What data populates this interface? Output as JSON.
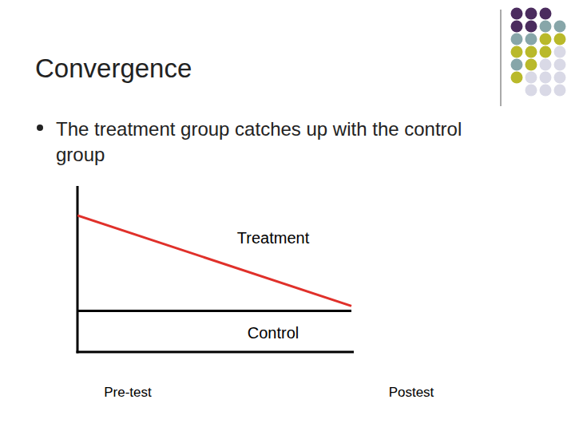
{
  "chart_data": {
    "type": "line",
    "title": "Convergence",
    "subtitle": "The treatment group catches up with the control group",
    "categories": [
      "Pre-test",
      "Postest"
    ],
    "series": [
      {
        "name": "Treatment",
        "color": "#e0302a",
        "values": [
          83,
          28
        ]
      },
      {
        "name": "Control",
        "color": "#000000",
        "values": [
          25,
          25
        ]
      }
    ],
    "ylim": [
      0,
      100
    ],
    "yticks": [],
    "tick_labels": "x",
    "grid": false
  }
}
